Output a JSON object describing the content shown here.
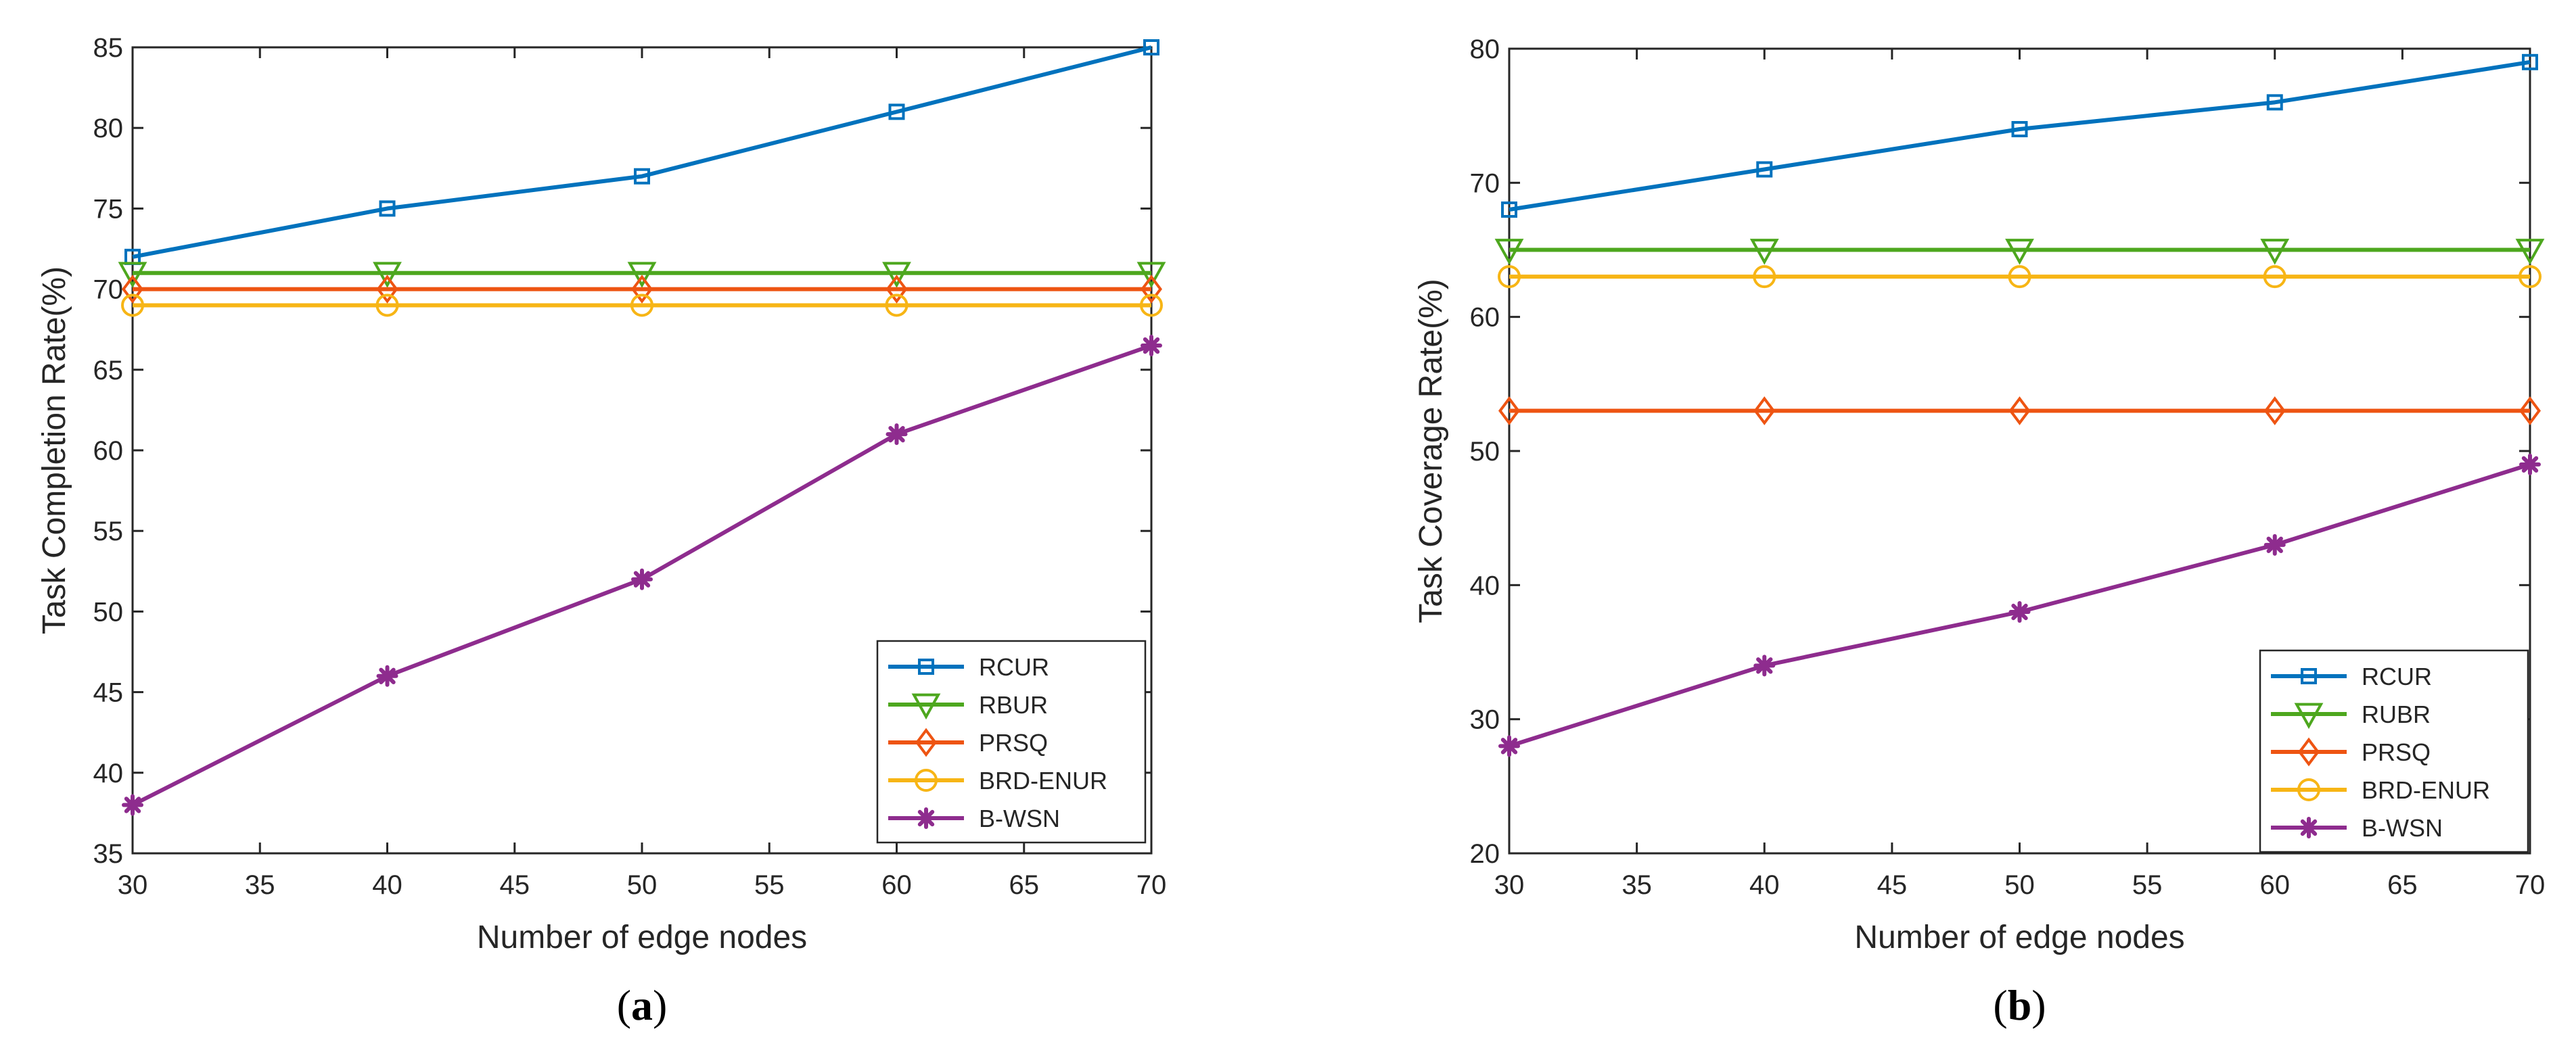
{
  "chart_data": [
    {
      "type": "line",
      "panel_label": "(a)",
      "panel_open": "(",
      "panel_letter": "a",
      "panel_close": ")",
      "xlabel": "Number of edge nodes",
      "ylabel": "Task Completion Rate(%)",
      "xlim": [
        30,
        70
      ],
      "ylim": [
        35,
        85
      ],
      "xticks": [
        30,
        35,
        40,
        45,
        50,
        55,
        60,
        65,
        70
      ],
      "yticks": [
        35,
        40,
        45,
        50,
        55,
        60,
        65,
        70,
        75,
        80,
        85
      ],
      "x": [
        30,
        40,
        50,
        60,
        70
      ],
      "legend_position": "bottom-right",
      "series": [
        {
          "name": "RCUR",
          "color": "#0072BD",
          "marker": "square",
          "values": [
            72,
            75,
            77,
            81,
            85
          ]
        },
        {
          "name": "RBUR",
          "color": "#4DA71E",
          "marker": "triangle-down",
          "values": [
            71,
            71,
            71,
            71,
            71
          ]
        },
        {
          "name": "PRSQ",
          "color": "#EE5412",
          "marker": "diamond",
          "values": [
            70,
            70,
            70,
            70,
            70
          ]
        },
        {
          "name": "BRD-ENUR",
          "color": "#F7B515",
          "marker": "circle",
          "values": [
            69,
            69,
            69,
            69,
            69
          ]
        },
        {
          "name": "B-WSN",
          "color": "#8E2C8E",
          "marker": "asterisk",
          "values": [
            38,
            46,
            52,
            61,
            66.5
          ]
        }
      ]
    },
    {
      "type": "line",
      "panel_label": "(b)",
      "panel_open": "(",
      "panel_letter": "b",
      "panel_close": ")",
      "xlabel": "Number of edge nodes",
      "ylabel": "Task Coverage Rate(%)",
      "xlim": [
        30,
        70
      ],
      "ylim": [
        20,
        80
      ],
      "xticks": [
        30,
        35,
        40,
        45,
        50,
        55,
        60,
        65,
        70
      ],
      "yticks": [
        20,
        30,
        40,
        50,
        60,
        70,
        80
      ],
      "x": [
        30,
        40,
        50,
        60,
        70
      ],
      "legend_position": "bottom-right",
      "series": [
        {
          "name": "RCUR",
          "color": "#0072BD",
          "marker": "square",
          "values": [
            68,
            71,
            74,
            76,
            79
          ]
        },
        {
          "name": "RUBR",
          "color": "#4DA71E",
          "marker": "triangle-down",
          "values": [
            65,
            65,
            65,
            65,
            65
          ]
        },
        {
          "name": "PRSQ",
          "color": "#EE5412",
          "marker": "diamond",
          "values": [
            53,
            53,
            53,
            53,
            53
          ]
        },
        {
          "name": "BRD-ENUR",
          "color": "#F7B515",
          "marker": "circle",
          "values": [
            63,
            63,
            63,
            63,
            63
          ]
        },
        {
          "name": "B-WSN",
          "color": "#8E2C8E",
          "marker": "asterisk",
          "values": [
            28,
            34,
            38,
            43,
            49
          ]
        }
      ]
    }
  ]
}
